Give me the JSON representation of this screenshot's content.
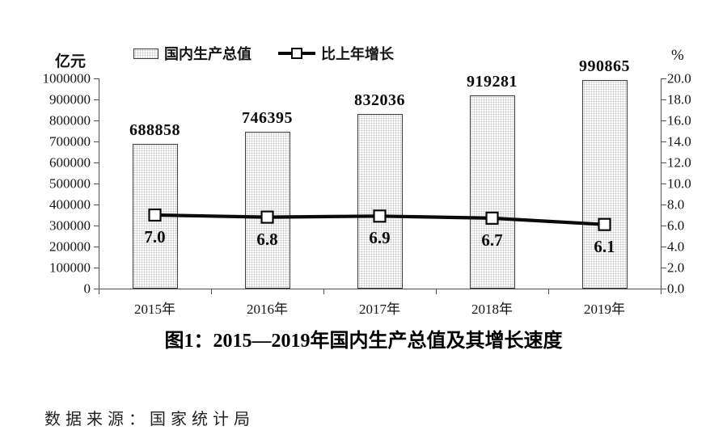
{
  "chart_data": {
    "type": "bar",
    "combo": "bar+line",
    "title": "图1：2015—2019年国内生产总值及其增长速度",
    "source_note": "数据来源：国家统计局",
    "categories": [
      "2015年",
      "2016年",
      "2017年",
      "2018年",
      "2019年"
    ],
    "series": [
      {
        "name": "国内生产总值",
        "type": "bar",
        "axis": "left",
        "unit": "亿元",
        "values": [
          688858,
          746395,
          832036,
          919281,
          990865
        ],
        "value_labels": [
          "688858",
          "746395",
          "832036",
          "919281",
          "990865"
        ]
      },
      {
        "name": "比上年增长",
        "type": "line",
        "axis": "right",
        "unit": "%",
        "values": [
          7.0,
          6.8,
          6.9,
          6.7,
          6.1
        ],
        "point_labels": [
          "7.0",
          "6.8",
          "6.9",
          "6.7",
          "6.1"
        ]
      }
    ],
    "left_axis": {
      "label": "亿元",
      "min": 0,
      "max": 1000000,
      "step": 100000,
      "ticks": [
        "0",
        "100000",
        "200000",
        "300000",
        "400000",
        "500000",
        "600000",
        "700000",
        "800000",
        "900000",
        "1000000"
      ]
    },
    "right_axis": {
      "label": "%",
      "min": 0,
      "max": 20,
      "step": 2,
      "ticks": [
        "0.0",
        "2.0",
        "4.0",
        "6.0",
        "8.0",
        "10.0",
        "12.0",
        "14.0",
        "16.0",
        "18.0",
        "20.0"
      ]
    },
    "legend": {
      "position": "top",
      "items": [
        "国内生产总值",
        "比上年增长"
      ]
    },
    "grid": false,
    "colors": {
      "bar_fill": "#fdfdfd",
      "bar_pattern_dot": "#c8c8c8",
      "bar_border": "#3c3c3c",
      "line": "#0a0a0a",
      "axis": "#4f4f4f",
      "text": "#111111",
      "background": "#ffffff"
    }
  }
}
